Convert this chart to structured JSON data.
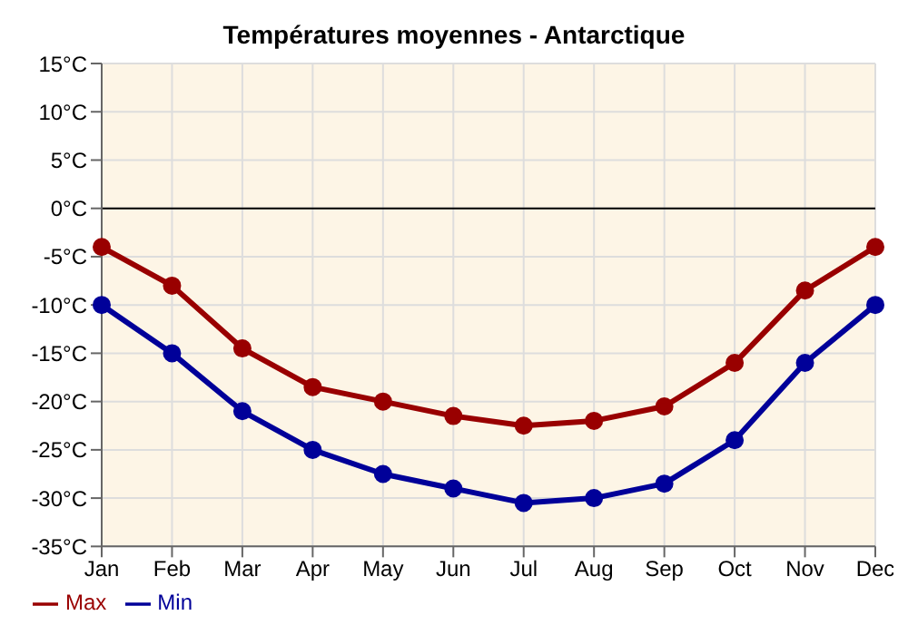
{
  "chart_data": {
    "type": "line",
    "title": "Températures moyennes - Antarctique",
    "categories": [
      "Jan",
      "Feb",
      "Mar",
      "Apr",
      "May",
      "Jun",
      "Jul",
      "Aug",
      "Sep",
      "Oct",
      "Nov",
      "Dec"
    ],
    "series": [
      {
        "name": "Min",
        "color": "#000099",
        "values": [
          -10,
          -15,
          -21,
          -25,
          -27.5,
          -29,
          -30.5,
          -30,
          -28.5,
          -24,
          -16,
          -10
        ]
      },
      {
        "name": "Max",
        "color": "#990000",
        "values": [
          -4,
          -8,
          -14.5,
          -18.5,
          -20,
          -21.5,
          -22.5,
          -22,
          -20.5,
          -16,
          -8.5,
          -4
        ]
      }
    ],
    "ylim": [
      -35,
      15
    ],
    "yticks": [
      {
        "value": -35,
        "label": "-35°C"
      },
      {
        "value": -30,
        "label": "-30°C"
      },
      {
        "value": -25,
        "label": "-25°C"
      },
      {
        "value": -20,
        "label": "-20°C"
      },
      {
        "value": -15,
        "label": "-15°C"
      },
      {
        "value": -10,
        "label": "-10°C"
      },
      {
        "value": -5,
        "label": "-5°C"
      },
      {
        "value": 0,
        "label": "0°C"
      },
      {
        "value": 5,
        "label": "5°C"
      },
      {
        "value": 10,
        "label": "10°C"
      },
      {
        "value": 15,
        "label": "15°C"
      }
    ],
    "ref_lines": [
      {
        "axis": "y",
        "value": 0,
        "color": "#000000"
      }
    ],
    "grid": true,
    "legend": "bottom left",
    "marker": "circle",
    "line_style": "solid"
  }
}
